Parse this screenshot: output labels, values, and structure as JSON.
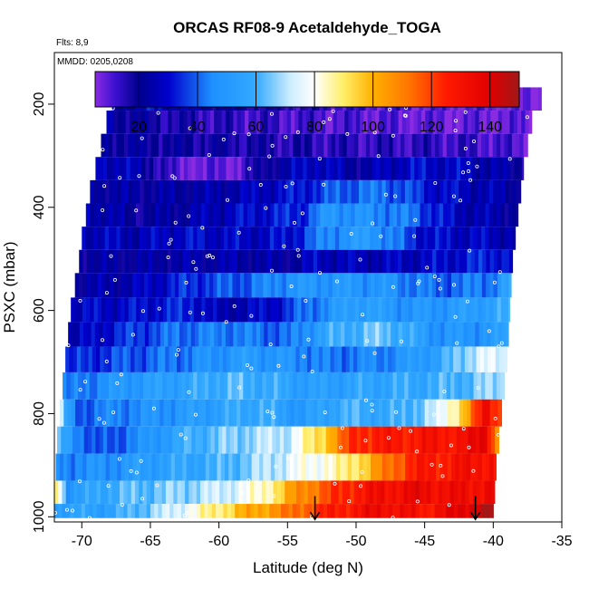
{
  "chart_data": {
    "type": "heatmap",
    "title": "ORCAS RF08-9 Acetaldehyde_TOGA",
    "flights_note": "Flts: 8,9",
    "date_note": "MMDD: 0205,0208",
    "xlabel": "Latitude (deg N)",
    "ylabel": "PSXC (mbar)",
    "xlim": [
      -72,
      -35
    ],
    "ylim": [
      1010,
      100
    ],
    "x_ticks": [
      -70,
      -65,
      -60,
      -55,
      -50,
      -45,
      -40,
      -35
    ],
    "y_ticks": [
      200,
      400,
      600,
      800,
      1000
    ],
    "colorbar": {
      "range": [
        5,
        150
      ],
      "ticks": [
        20,
        40,
        60,
        80,
        100,
        120,
        140
      ],
      "stops": [
        {
          "v": 5,
          "c": "#8a2be2"
        },
        {
          "v": 12,
          "c": "#3a10d0"
        },
        {
          "v": 20,
          "c": "#00008b"
        },
        {
          "v": 30,
          "c": "#0000cd"
        },
        {
          "v": 45,
          "c": "#1e90ff"
        },
        {
          "v": 60,
          "c": "#33aaff"
        },
        {
          "v": 72,
          "c": "#cfeeff"
        },
        {
          "v": 80,
          "c": "#ffffff"
        },
        {
          "v": 90,
          "c": "#ffee66"
        },
        {
          "v": 100,
          "c": "#ffb000"
        },
        {
          "v": 112,
          "c": "#ff7700"
        },
        {
          "v": 125,
          "c": "#ff1a00"
        },
        {
          "v": 140,
          "c": "#e00000"
        },
        {
          "v": 150,
          "c": "#a01818"
        }
      ]
    },
    "bands": [
      {
        "p": 190,
        "xmin": -67.8,
        "xmax": -36.5,
        "pts": [
          [
            -67.8,
            22
          ],
          [
            -65,
            30
          ],
          [
            -60,
            22
          ],
          [
            -55,
            16
          ],
          [
            -50,
            12
          ],
          [
            -45,
            9
          ],
          [
            -40,
            8
          ],
          [
            -36.5,
            6
          ]
        ]
      },
      {
        "p": 235,
        "xmin": -68.2,
        "xmax": -37.2,
        "pts": [
          [
            -68.2,
            24
          ],
          [
            -65,
            18
          ],
          [
            -60,
            14
          ],
          [
            -55,
            12
          ],
          [
            -50,
            10
          ],
          [
            -45,
            8
          ],
          [
            -40,
            8
          ],
          [
            -37.2,
            8
          ]
        ]
      },
      {
        "p": 280,
        "xmin": -68.6,
        "xmax": -37.5,
        "pts": [
          [
            -68.6,
            22
          ],
          [
            -65,
            20
          ],
          [
            -60,
            18
          ],
          [
            -55,
            16
          ],
          [
            -50,
            14
          ],
          [
            -45,
            14
          ],
          [
            -40,
            12
          ],
          [
            -37.5,
            8
          ]
        ]
      },
      {
        "p": 325,
        "xmin": -69.0,
        "xmax": -37.8,
        "pts": [
          [
            -69,
            30
          ],
          [
            -66,
            25
          ],
          [
            -63,
            8
          ],
          [
            -59,
            8
          ],
          [
            -56,
            22
          ],
          [
            -53,
            30
          ],
          [
            -50,
            22
          ],
          [
            -46,
            30
          ],
          [
            -42,
            28
          ],
          [
            -37.8,
            20
          ]
        ]
      },
      {
        "p": 370,
        "xmin": -69.4,
        "xmax": -38.0,
        "pts": [
          [
            -69.4,
            24
          ],
          [
            -65,
            22
          ],
          [
            -60,
            24
          ],
          [
            -55,
            30
          ],
          [
            -51,
            40
          ],
          [
            -48,
            42
          ],
          [
            -44,
            30
          ],
          [
            -40,
            25
          ],
          [
            -38,
            22
          ]
        ]
      },
      {
        "p": 415,
        "xmin": -69.7,
        "xmax": -38.2,
        "pts": [
          [
            -69.7,
            28
          ],
          [
            -66,
            20
          ],
          [
            -62,
            24
          ],
          [
            -58,
            30
          ],
          [
            -54,
            34
          ],
          [
            -52,
            50
          ],
          [
            -48,
            45
          ],
          [
            -46,
            42
          ],
          [
            -43,
            28
          ],
          [
            -38.2,
            22
          ]
        ]
      },
      {
        "p": 460,
        "xmin": -70.0,
        "xmax": -38.4,
        "pts": [
          [
            -70,
            28
          ],
          [
            -66,
            26
          ],
          [
            -62,
            30
          ],
          [
            -58,
            28
          ],
          [
            -55,
            30
          ],
          [
            -52,
            46
          ],
          [
            -49,
            52
          ],
          [
            -45,
            30
          ],
          [
            -41,
            28
          ],
          [
            -38.4,
            26
          ]
        ]
      },
      {
        "p": 505,
        "xmin": -70.2,
        "xmax": -38.6,
        "pts": [
          [
            -70.2,
            22
          ],
          [
            -66,
            22
          ],
          [
            -62,
            24
          ],
          [
            -58,
            24
          ],
          [
            -55,
            22
          ],
          [
            -53,
            28
          ],
          [
            -50,
            26
          ],
          [
            -45,
            28
          ],
          [
            -40,
            34
          ],
          [
            -38.6,
            30
          ]
        ]
      },
      {
        "p": 550,
        "xmin": -70.5,
        "xmax": -38.7,
        "pts": [
          [
            -70.5,
            22
          ],
          [
            -66,
            26
          ],
          [
            -62,
            35
          ],
          [
            -58,
            40
          ],
          [
            -55,
            48
          ],
          [
            -52,
            50
          ],
          [
            -48,
            48
          ],
          [
            -44,
            40
          ],
          [
            -40,
            44
          ],
          [
            -38.7,
            58
          ]
        ]
      },
      {
        "p": 600,
        "xmin": -70.8,
        "xmax": -38.8,
        "pts": [
          [
            -70.8,
            28
          ],
          [
            -66,
            30
          ],
          [
            -62,
            34
          ],
          [
            -60,
            24
          ],
          [
            -56,
            30
          ],
          [
            -53,
            44
          ],
          [
            -50,
            55
          ],
          [
            -46,
            48
          ],
          [
            -42,
            52
          ],
          [
            -38.8,
            58
          ]
        ]
      },
      {
        "p": 645,
        "xmin": -71.0,
        "xmax": -38.9,
        "pts": [
          [
            -71,
            24
          ],
          [
            -67,
            34
          ],
          [
            -63,
            42
          ],
          [
            -59,
            44
          ],
          [
            -55,
            40
          ],
          [
            -52,
            58
          ],
          [
            -48,
            65
          ],
          [
            -44,
            48
          ],
          [
            -40,
            50
          ],
          [
            -38.9,
            55
          ]
        ]
      },
      {
        "p": 695,
        "xmin": -71.2,
        "xmax": -39.0,
        "pts": [
          [
            -71.2,
            32
          ],
          [
            -67,
            38
          ],
          [
            -62,
            44
          ],
          [
            -58,
            52
          ],
          [
            -55,
            48
          ],
          [
            -52,
            42
          ],
          [
            -48,
            45
          ],
          [
            -44,
            55
          ],
          [
            -41,
            75
          ],
          [
            -39,
            72
          ]
        ]
      },
      {
        "p": 745,
        "xmin": -71.4,
        "xmax": -39.2,
        "pts": [
          [
            -71.4,
            40
          ],
          [
            -67,
            50
          ],
          [
            -63,
            55
          ],
          [
            -59,
            62
          ],
          [
            -56,
            58
          ],
          [
            -53,
            52
          ],
          [
            -50,
            56
          ],
          [
            -46,
            58
          ],
          [
            -42,
            62
          ],
          [
            -39.2,
            70
          ]
        ]
      },
      {
        "p": 800,
        "xmin": -71.6,
        "xmax": -39.4,
        "pts": [
          [
            -71.6,
            70
          ],
          [
            -70.5,
            40
          ],
          [
            -67,
            45
          ],
          [
            -63,
            50
          ],
          [
            -60,
            55
          ],
          [
            -57,
            60
          ],
          [
            -54,
            50
          ],
          [
            -51,
            60
          ],
          [
            -47,
            58
          ],
          [
            -44,
            72
          ],
          [
            -42,
            100
          ],
          [
            -40.5,
            135
          ],
          [
            -39.4,
            118
          ]
        ]
      },
      {
        "p": 850,
        "xmin": -71.8,
        "xmax": -39.6,
        "pts": [
          [
            -71.8,
            60
          ],
          [
            -69,
            35
          ],
          [
            -66,
            45
          ],
          [
            -62,
            60
          ],
          [
            -58,
            68
          ],
          [
            -55,
            72
          ],
          [
            -52,
            100
          ],
          [
            -50,
            125
          ],
          [
            -46,
            128
          ],
          [
            -42,
            130
          ],
          [
            -40.5,
            140
          ],
          [
            -39.6,
            100
          ]
        ]
      },
      {
        "p": 905,
        "xmin": -71.9,
        "xmax": -39.8,
        "pts": [
          [
            -71.9,
            45
          ],
          [
            -68,
            48
          ],
          [
            -64,
            55
          ],
          [
            -60,
            60
          ],
          [
            -57,
            68
          ],
          [
            -54,
            78
          ],
          [
            -51,
            85
          ],
          [
            -49,
            100
          ],
          [
            -46,
            125
          ],
          [
            -42,
            130
          ],
          [
            -40,
            132
          ],
          [
            -39.8,
            125
          ]
        ]
      },
      {
        "p": 955,
        "xmin": -72.0,
        "xmax": -39.9,
        "pts": [
          [
            -72,
            100
          ],
          [
            -71,
            50
          ],
          [
            -68,
            60
          ],
          [
            -64,
            65
          ],
          [
            -60,
            72
          ],
          [
            -57,
            82
          ],
          [
            -54,
            108
          ],
          [
            -50,
            128
          ],
          [
            -46,
            135
          ],
          [
            -42,
            132
          ],
          [
            -40,
            135
          ],
          [
            -39.9,
            132
          ]
        ]
      },
      {
        "p": 995,
        "xmin": -72.0,
        "xmax": -40.0,
        "pts": [
          [
            -72,
            55
          ],
          [
            -68,
            55
          ],
          [
            -64,
            70
          ],
          [
            -61,
            85
          ],
          [
            -58,
            100
          ],
          [
            -55,
            110
          ],
          [
            -52,
            125
          ],
          [
            -48,
            135
          ],
          [
            -45,
            128
          ],
          [
            -42,
            140
          ],
          [
            -40,
            150
          ]
        ]
      }
    ],
    "arrows": [
      {
        "x": -53.0,
        "p_top": 960,
        "p_bot": 1005
      },
      {
        "x": -41.3,
        "p_top": 960,
        "p_bot": 1005
      }
    ]
  }
}
